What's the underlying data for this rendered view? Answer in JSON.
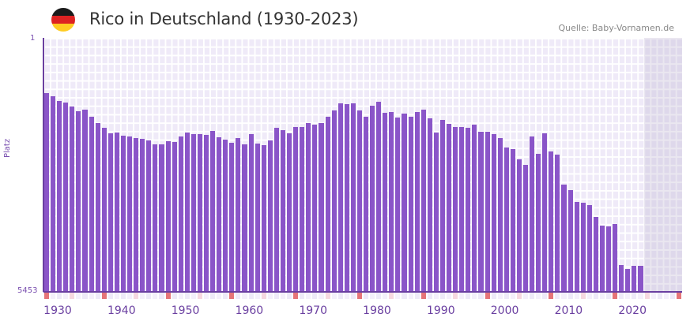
{
  "header": {
    "title": "Rico in Deutschland (1930-2023)",
    "source": "Quelle: Baby-Vornamen.de",
    "flag_icon": "germany-flag-icon",
    "flag_colors": [
      "#1a1a1a",
      "#dd2222",
      "#ffcc22"
    ]
  },
  "colors": {
    "bar": "#8a55c8",
    "axis": "#6a3fa0",
    "decade_marker": "#e57478",
    "half_decade_marker": "#f6d8e0",
    "grid_bg": "#efeaf8"
  },
  "chart_data": {
    "type": "bar",
    "title": "Rico in Deutschland (1930-2023)",
    "xlabel": "",
    "ylabel": "Platz",
    "y_inverted": true,
    "ylim": [
      1,
      5453
    ],
    "ytick_labels": [
      "1",
      "5453"
    ],
    "xtick_labels": [
      "1930",
      "1940",
      "1950",
      "1960",
      "1970",
      "1980",
      "1990",
      "2000",
      "2010",
      "2020"
    ],
    "x_range": [
      1930,
      2029
    ],
    "grid": true,
    "years": [
      1930,
      1931,
      1932,
      1933,
      1934,
      1935,
      1936,
      1937,
      1938,
      1939,
      1940,
      1941,
      1942,
      1943,
      1944,
      1945,
      1946,
      1947,
      1948,
      1949,
      1950,
      1951,
      1952,
      1953,
      1954,
      1955,
      1956,
      1957,
      1958,
      1959,
      1960,
      1961,
      1962,
      1963,
      1964,
      1965,
      1966,
      1967,
      1968,
      1969,
      1970,
      1971,
      1972,
      1973,
      1974,
      1975,
      1976,
      1977,
      1978,
      1979,
      1980,
      1981,
      1982,
      1983,
      1984,
      1985,
      1986,
      1987,
      1988,
      1989,
      1990,
      1991,
      1992,
      1993,
      1994,
      1995,
      1996,
      1997,
      1998,
      1999,
      2000,
      2001,
      2002,
      2003,
      2004,
      2005,
      2006,
      2007,
      2008,
      2009,
      2010,
      2011,
      2012,
      2013,
      2014,
      2015,
      2016,
      2017,
      2018,
      2019,
      2020,
      2021,
      2022,
      2023
    ],
    "values": [
      1184,
      1252,
      1354,
      1388,
      1472,
      1574,
      1540,
      1692,
      1828,
      1929,
      2048,
      2031,
      2099,
      2116,
      2150,
      2167,
      2201,
      2285,
      2285,
      2218,
      2235,
      2116,
      2031,
      2065,
      2065,
      2082,
      1997,
      2133,
      2184,
      2251,
      2150,
      2285,
      2065,
      2268,
      2302,
      2201,
      1929,
      1980,
      2048,
      1912,
      1912,
      1828,
      1861,
      1828,
      1692,
      1557,
      1405,
      1422,
      1405,
      1557,
      1692,
      1455,
      1370,
      1607,
      1590,
      1709,
      1624,
      1692,
      1590,
      1540,
      1726,
      2031,
      1760,
      1845,
      1912,
      1912,
      1929,
      1861,
      2014,
      2014,
      2065,
      2150,
      2353,
      2387,
      2607,
      2726,
      2116,
      2488,
      2048,
      2437,
      2505,
      3148,
      3267,
      3521,
      3538,
      3589,
      3843,
      4029,
      4046,
      3996,
      4876,
      4960,
      4893,
      4893
    ]
  },
  "annotations": {
    "forecast_shading_from": 2024
  }
}
